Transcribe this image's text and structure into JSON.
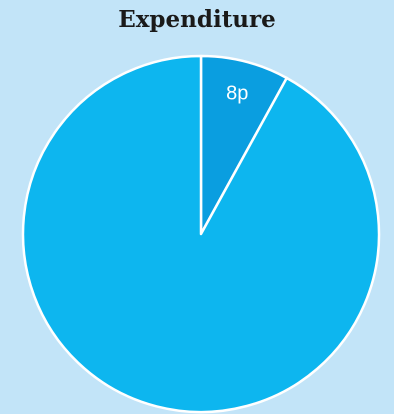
{
  "chart_data": {
    "type": "pie",
    "title": "Expenditure",
    "slices": [
      {
        "label": "8p",
        "value": 8,
        "color": "#0a9ee0"
      },
      {
        "label": "",
        "value": 92,
        "color": "#0db6ef"
      }
    ],
    "start_angle_deg": 0,
    "direction": "clockwise",
    "stroke_color": "#ffffff"
  }
}
